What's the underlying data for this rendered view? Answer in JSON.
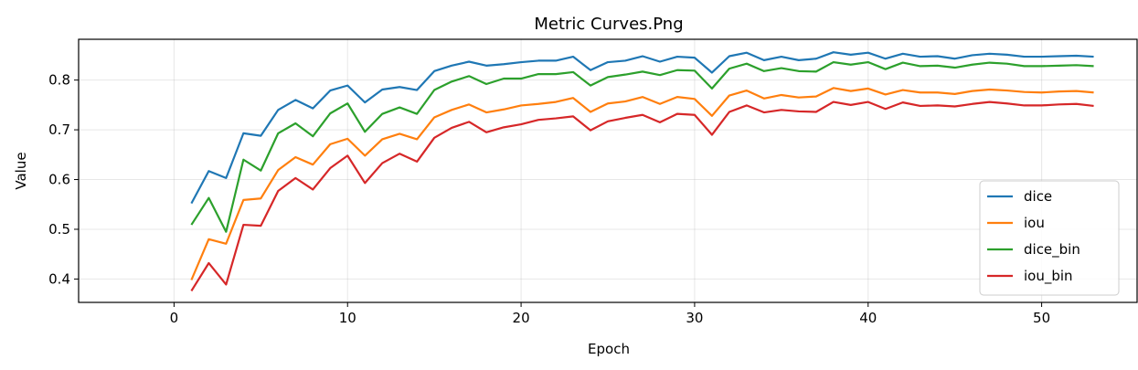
{
  "chart_data": {
    "type": "line",
    "title": "Metric Curves.Png",
    "xlabel": "Epoch",
    "ylabel": "Value",
    "xlim": [
      -5.5,
      55.5
    ],
    "ylim": [
      0.353,
      0.882
    ],
    "xticks": [
      0,
      10,
      20,
      30,
      40,
      50
    ],
    "yticks": [
      0.4,
      0.5,
      0.6,
      0.7,
      0.8
    ],
    "xtick_labels": [
      "0",
      "10",
      "20",
      "30",
      "40",
      "50"
    ],
    "ytick_labels": [
      "0.4",
      "0.5",
      "0.6",
      "0.7",
      "0.8"
    ],
    "grid": true,
    "legend_position": "lower-right",
    "x": [
      1,
      2,
      3,
      4,
      5,
      6,
      7,
      8,
      9,
      10,
      11,
      12,
      13,
      14,
      15,
      16,
      17,
      18,
      19,
      20,
      21,
      22,
      23,
      24,
      25,
      26,
      27,
      28,
      29,
      30,
      31,
      32,
      33,
      34,
      35,
      36,
      37,
      38,
      39,
      40,
      41,
      42,
      43,
      44,
      45,
      46,
      47,
      48,
      49,
      50,
      51,
      52,
      53
    ],
    "series": [
      {
        "name": "dice",
        "color": "#1f77b4",
        "values": [
          0.552,
          0.617,
          0.603,
          0.693,
          0.688,
          0.74,
          0.76,
          0.743,
          0.779,
          0.789,
          0.755,
          0.781,
          0.786,
          0.78,
          0.818,
          0.829,
          0.837,
          0.829,
          0.832,
          0.836,
          0.839,
          0.839,
          0.847,
          0.82,
          0.836,
          0.839,
          0.848,
          0.837,
          0.847,
          0.845,
          0.815,
          0.848,
          0.855,
          0.84,
          0.847,
          0.84,
          0.843,
          0.856,
          0.851,
          0.855,
          0.843,
          0.853,
          0.847,
          0.848,
          0.843,
          0.85,
          0.853,
          0.851,
          0.847,
          0.847,
          0.848,
          0.849,
          0.847
        ]
      },
      {
        "name": "iou",
        "color": "#ff7f0e",
        "values": [
          0.398,
          0.48,
          0.471,
          0.559,
          0.562,
          0.619,
          0.645,
          0.63,
          0.671,
          0.682,
          0.648,
          0.681,
          0.692,
          0.681,
          0.725,
          0.74,
          0.751,
          0.735,
          0.741,
          0.749,
          0.752,
          0.756,
          0.764,
          0.736,
          0.753,
          0.757,
          0.766,
          0.752,
          0.766,
          0.762,
          0.728,
          0.769,
          0.779,
          0.763,
          0.77,
          0.765,
          0.767,
          0.784,
          0.778,
          0.783,
          0.771,
          0.78,
          0.775,
          0.775,
          0.772,
          0.778,
          0.781,
          0.779,
          0.776,
          0.775,
          0.777,
          0.778,
          0.775
        ]
      },
      {
        "name": "dice_bin",
        "color": "#2ca02c",
        "values": [
          0.509,
          0.563,
          0.495,
          0.64,
          0.618,
          0.693,
          0.713,
          0.687,
          0.733,
          0.753,
          0.696,
          0.732,
          0.745,
          0.732,
          0.78,
          0.797,
          0.808,
          0.792,
          0.803,
          0.803,
          0.812,
          0.812,
          0.816,
          0.789,
          0.806,
          0.811,
          0.817,
          0.81,
          0.82,
          0.819,
          0.783,
          0.823,
          0.833,
          0.818,
          0.824,
          0.818,
          0.817,
          0.836,
          0.831,
          0.836,
          0.822,
          0.835,
          0.828,
          0.829,
          0.825,
          0.831,
          0.835,
          0.833,
          0.828,
          0.828,
          0.829,
          0.83,
          0.828
        ]
      },
      {
        "name": "iou_bin",
        "color": "#d62728",
        "values": [
          0.376,
          0.432,
          0.389,
          0.509,
          0.507,
          0.577,
          0.603,
          0.58,
          0.623,
          0.648,
          0.593,
          0.633,
          0.652,
          0.636,
          0.684,
          0.704,
          0.716,
          0.695,
          0.705,
          0.711,
          0.72,
          0.723,
          0.727,
          0.699,
          0.717,
          0.724,
          0.73,
          0.715,
          0.732,
          0.73,
          0.69,
          0.736,
          0.749,
          0.735,
          0.74,
          0.737,
          0.736,
          0.756,
          0.75,
          0.756,
          0.742,
          0.755,
          0.748,
          0.749,
          0.747,
          0.752,
          0.756,
          0.753,
          0.749,
          0.749,
          0.751,
          0.752,
          0.748
        ]
      }
    ]
  }
}
